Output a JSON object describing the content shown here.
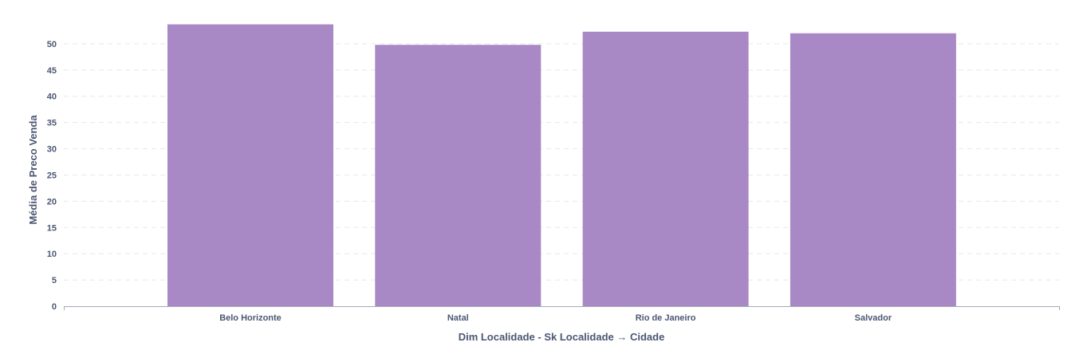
{
  "chart_data": {
    "type": "bar",
    "categories": [
      "Belo Horizonte",
      "Natal",
      "Rio de Janeiro",
      "Salvador"
    ],
    "series": [
      {
        "values": [
          53.7,
          49.8,
          52.3,
          52.0
        ]
      }
    ],
    "xlabel": "Dim Localidade - Sk Localidade → Cidade",
    "ylabel": "Média de Preco Venda",
    "ylim": [
      0,
      55
    ],
    "yticks": [
      0,
      5,
      10,
      15,
      20,
      25,
      30,
      35,
      40,
      45,
      50
    ],
    "grid": true,
    "bar_color": "#a989c5",
    "legend": "none"
  }
}
